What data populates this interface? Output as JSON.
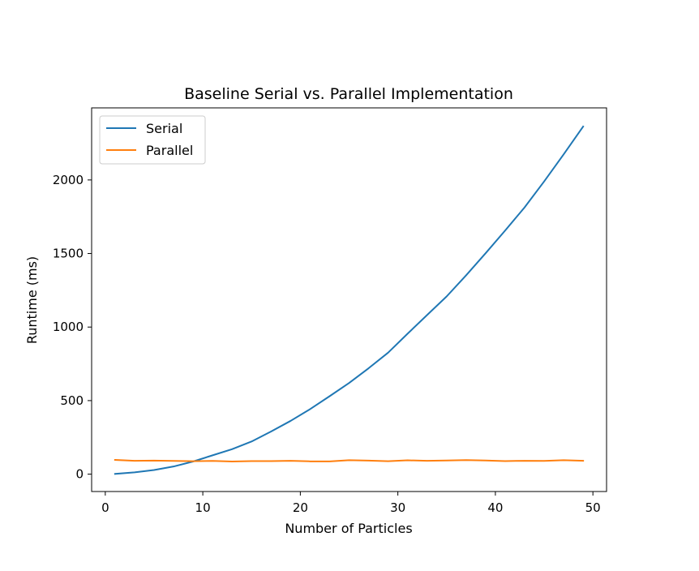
{
  "chart_data": {
    "type": "line",
    "title": "Baseline Serial vs. Parallel Implementation",
    "xlabel": "Number of Particles",
    "ylabel": "Runtime (ms)",
    "xlim": [
      -1.4,
      51.4
    ],
    "ylim": [
      -118,
      2490
    ],
    "xticks": [
      0,
      10,
      20,
      30,
      40,
      50
    ],
    "yticks": [
      0,
      500,
      1000,
      1500,
      2000
    ],
    "grid": false,
    "legend_position": "top-left",
    "x": [
      1,
      3,
      5,
      7,
      9,
      11,
      13,
      15,
      17,
      19,
      21,
      23,
      25,
      27,
      29,
      31,
      33,
      35,
      37,
      39,
      41,
      43,
      45,
      47,
      49
    ],
    "series": [
      {
        "name": "Serial",
        "color": "#1f77b4",
        "values": [
          2,
          12,
          28,
          52,
          86,
          128,
          170,
          222,
          290,
          362,
          442,
          530,
          620,
          720,
          826,
          955,
          1082,
          1208,
          1352,
          1502,
          1656,
          1814,
          1990,
          2174,
          2363
        ]
      },
      {
        "name": "Parallel",
        "color": "#ff7f0e",
        "values": [
          97,
          91,
          92,
          90,
          88,
          90,
          86,
          89,
          89,
          91,
          87,
          87,
          95,
          92,
          88,
          94,
          91,
          93,
          96,
          93,
          89,
          91,
          90,
          95,
          91
        ]
      }
    ]
  }
}
